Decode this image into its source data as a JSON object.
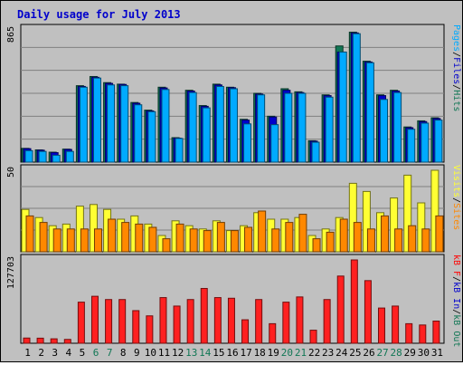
{
  "title": "Daily usage for July 2013",
  "colors": {
    "background": "#c0c0c0",
    "panel": "#c0c0c0",
    "title": "#0000cc",
    "pages": "#00aaff",
    "files": "#0000cc",
    "hits": "#117755",
    "visits": "#ffff33",
    "sites": "#ff8800",
    "kb_in": "#0000cc",
    "kb_out": "#117755",
    "kb_f": "#ff0000",
    "kbytes": "#ff2020",
    "weekend": "#117755",
    "weekday": "#000000"
  },
  "chart_data": [
    {
      "type": "bar",
      "panel": "top",
      "ymax_label": "865",
      "ylim": [
        0,
        865
      ],
      "right_label": [
        {
          "text": "Pages",
          "color_key": "pages"
        },
        {
          "text": "/",
          "color_key": "weekday"
        },
        {
          "text": "Files",
          "color_key": "files"
        },
        {
          "text": "/",
          "color_key": "weekday"
        },
        {
          "text": "Hits",
          "color_key": "hits"
        }
      ],
      "categories": [
        "1",
        "2",
        "3",
        "4",
        "5",
        "6",
        "7",
        "8",
        "9",
        "10",
        "11",
        "12",
        "13",
        "14",
        "15",
        "16",
        "17",
        "18",
        "19",
        "20",
        "21",
        "22",
        "23",
        "24",
        "25",
        "26",
        "27",
        "28",
        "29",
        "30",
        "31"
      ],
      "series": [
        {
          "key": "hits",
          "values": [
            90,
            80,
            65,
            85,
            500,
            560,
            520,
            510,
            390,
            340,
            490,
            160,
            470,
            370,
            510,
            490,
            280,
            450,
            300,
            480,
            460,
            140,
            440,
            760,
            850,
            660,
            440,
            470,
            230,
            270,
            290
          ]
        },
        {
          "key": "files",
          "values": [
            88,
            78,
            62,
            83,
            495,
            555,
            515,
            508,
            385,
            335,
            485,
            157,
            465,
            365,
            505,
            487,
            275,
            445,
            295,
            470,
            455,
            137,
            435,
            720,
            845,
            655,
            435,
            465,
            225,
            265,
            285
          ]
        },
        {
          "key": "pages",
          "values": [
            75,
            70,
            45,
            70,
            490,
            550,
            505,
            500,
            375,
            330,
            475,
            155,
            455,
            355,
            495,
            480,
            250,
            440,
            245,
            450,
            450,
            130,
            425,
            720,
            840,
            650,
            410,
            455,
            215,
            255,
            275
          ]
        }
      ]
    },
    {
      "type": "bar",
      "panel": "middle",
      "ymax_label": "50",
      "ylim": [
        0,
        50
      ],
      "right_label": [
        {
          "text": "Visits",
          "color_key": "visits"
        },
        {
          "text": "/",
          "color_key": "weekday"
        },
        {
          "text": "Sites",
          "color_key": "sites"
        }
      ],
      "categories": [
        "1",
        "2",
        "3",
        "4",
        "5",
        "6",
        "7",
        "8",
        "9",
        "10",
        "11",
        "12",
        "13",
        "14",
        "15",
        "16",
        "17",
        "18",
        "19",
        "20",
        "21",
        "22",
        "23",
        "24",
        "25",
        "26",
        "27",
        "28",
        "29",
        "30",
        "31"
      ],
      "series": [
        {
          "key": "visits",
          "values": [
            26,
            21,
            16,
            17,
            28,
            29,
            26,
            20,
            22,
            17,
            10,
            19,
            16,
            14,
            19,
            13,
            16,
            24,
            20,
            20,
            21,
            10,
            14,
            21,
            42,
            37,
            24,
            33,
            47,
            30,
            50
          ]
        },
        {
          "key": "sites",
          "values": [
            22,
            18,
            14,
            14,
            14,
            14,
            20,
            18,
            17,
            15,
            8,
            17,
            14,
            13,
            18,
            13,
            15,
            25,
            14,
            18,
            23,
            8,
            12,
            20,
            18,
            14,
            22,
            14,
            16,
            14,
            22
          ]
        }
      ]
    },
    {
      "type": "bar",
      "panel": "bottom",
      "ymax_label": "127703",
      "ylim": [
        0,
        127703
      ],
      "right_label": [
        {
          "text": "kB F",
          "color_key": "kb_f"
        },
        {
          "text": "/",
          "color_key": "weekday"
        },
        {
          "text": "kB In",
          "color_key": "kb_in"
        },
        {
          "text": "/",
          "color_key": "weekday"
        },
        {
          "text": "kB Out",
          "color_key": "kb_out"
        }
      ],
      "categories": [
        "1",
        "2",
        "3",
        "4",
        "5",
        "6",
        "7",
        "8",
        "9",
        "10",
        "11",
        "12",
        "13",
        "14",
        "15",
        "16",
        "17",
        "18",
        "19",
        "20",
        "21",
        "22",
        "23",
        "24",
        "25",
        "26",
        "27",
        "28",
        "29",
        "30",
        "31"
      ],
      "series": [
        {
          "key": "kbytes",
          "values": [
            8000,
            7800,
            6800,
            5900,
            63000,
            72000,
            67000,
            67000,
            50000,
            42000,
            70000,
            57000,
            67000,
            84000,
            70000,
            69000,
            36000,
            67000,
            30000,
            63000,
            71000,
            20000,
            67000,
            103000,
            127703,
            96000,
            54000,
            57000,
            30000,
            28000,
            34000
          ]
        }
      ]
    }
  ],
  "x_axis": {
    "days": [
      "1",
      "2",
      "3",
      "4",
      "5",
      "6",
      "7",
      "8",
      "9",
      "10",
      "11",
      "12",
      "13",
      "14",
      "15",
      "16",
      "17",
      "18",
      "19",
      "20",
      "21",
      "22",
      "23",
      "24",
      "25",
      "26",
      "27",
      "28",
      "29",
      "30",
      "31"
    ],
    "weekend_days": [
      "6",
      "7",
      "13",
      "14",
      "20",
      "21",
      "27",
      "28"
    ]
  }
}
